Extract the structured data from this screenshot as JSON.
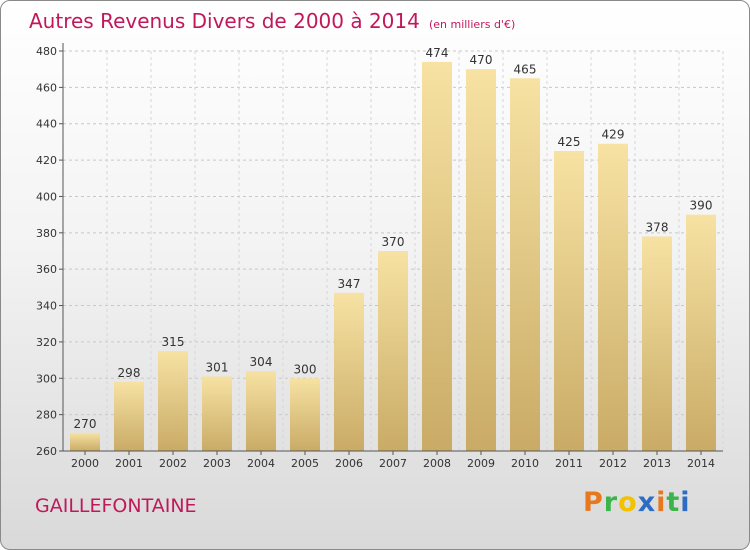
{
  "title": "Autres Revenus Divers de 2000 à 2014",
  "unit": "(en milliers d'€)",
  "commune": "GAILLEFONTAINE",
  "brand": {
    "letters": [
      "P",
      "r",
      "o",
      "x",
      "i",
      "t",
      "i"
    ],
    "colors": [
      "#e8781e",
      "#3ab54a",
      "#f2c200",
      "#2b6cc4",
      "#e8781e",
      "#3ab54a",
      "#2b6cc4"
    ]
  },
  "colors": {
    "title": "#c2185b",
    "bar_light": "#f7e2a3",
    "bar_dark": "#c9ab66"
  },
  "chart_data": {
    "type": "bar",
    "title": "Autres Revenus Divers de 2000 à 2014",
    "subtitle": "(en milliers d'€)",
    "xlabel": "",
    "ylabel": "",
    "categories": [
      "2000",
      "2001",
      "2002",
      "2003",
      "2004",
      "2005",
      "2006",
      "2007",
      "2008",
      "2009",
      "2010",
      "2011",
      "2012",
      "2013",
      "2014"
    ],
    "values": [
      270,
      298,
      315,
      301,
      304,
      300,
      347,
      370,
      474,
      470,
      465,
      425,
      429,
      378,
      390
    ],
    "ylim": [
      260,
      480
    ],
    "yticks": [
      260,
      280,
      300,
      320,
      340,
      360,
      380,
      400,
      420,
      440,
      460,
      480
    ],
    "grid": true,
    "legend": "none"
  }
}
